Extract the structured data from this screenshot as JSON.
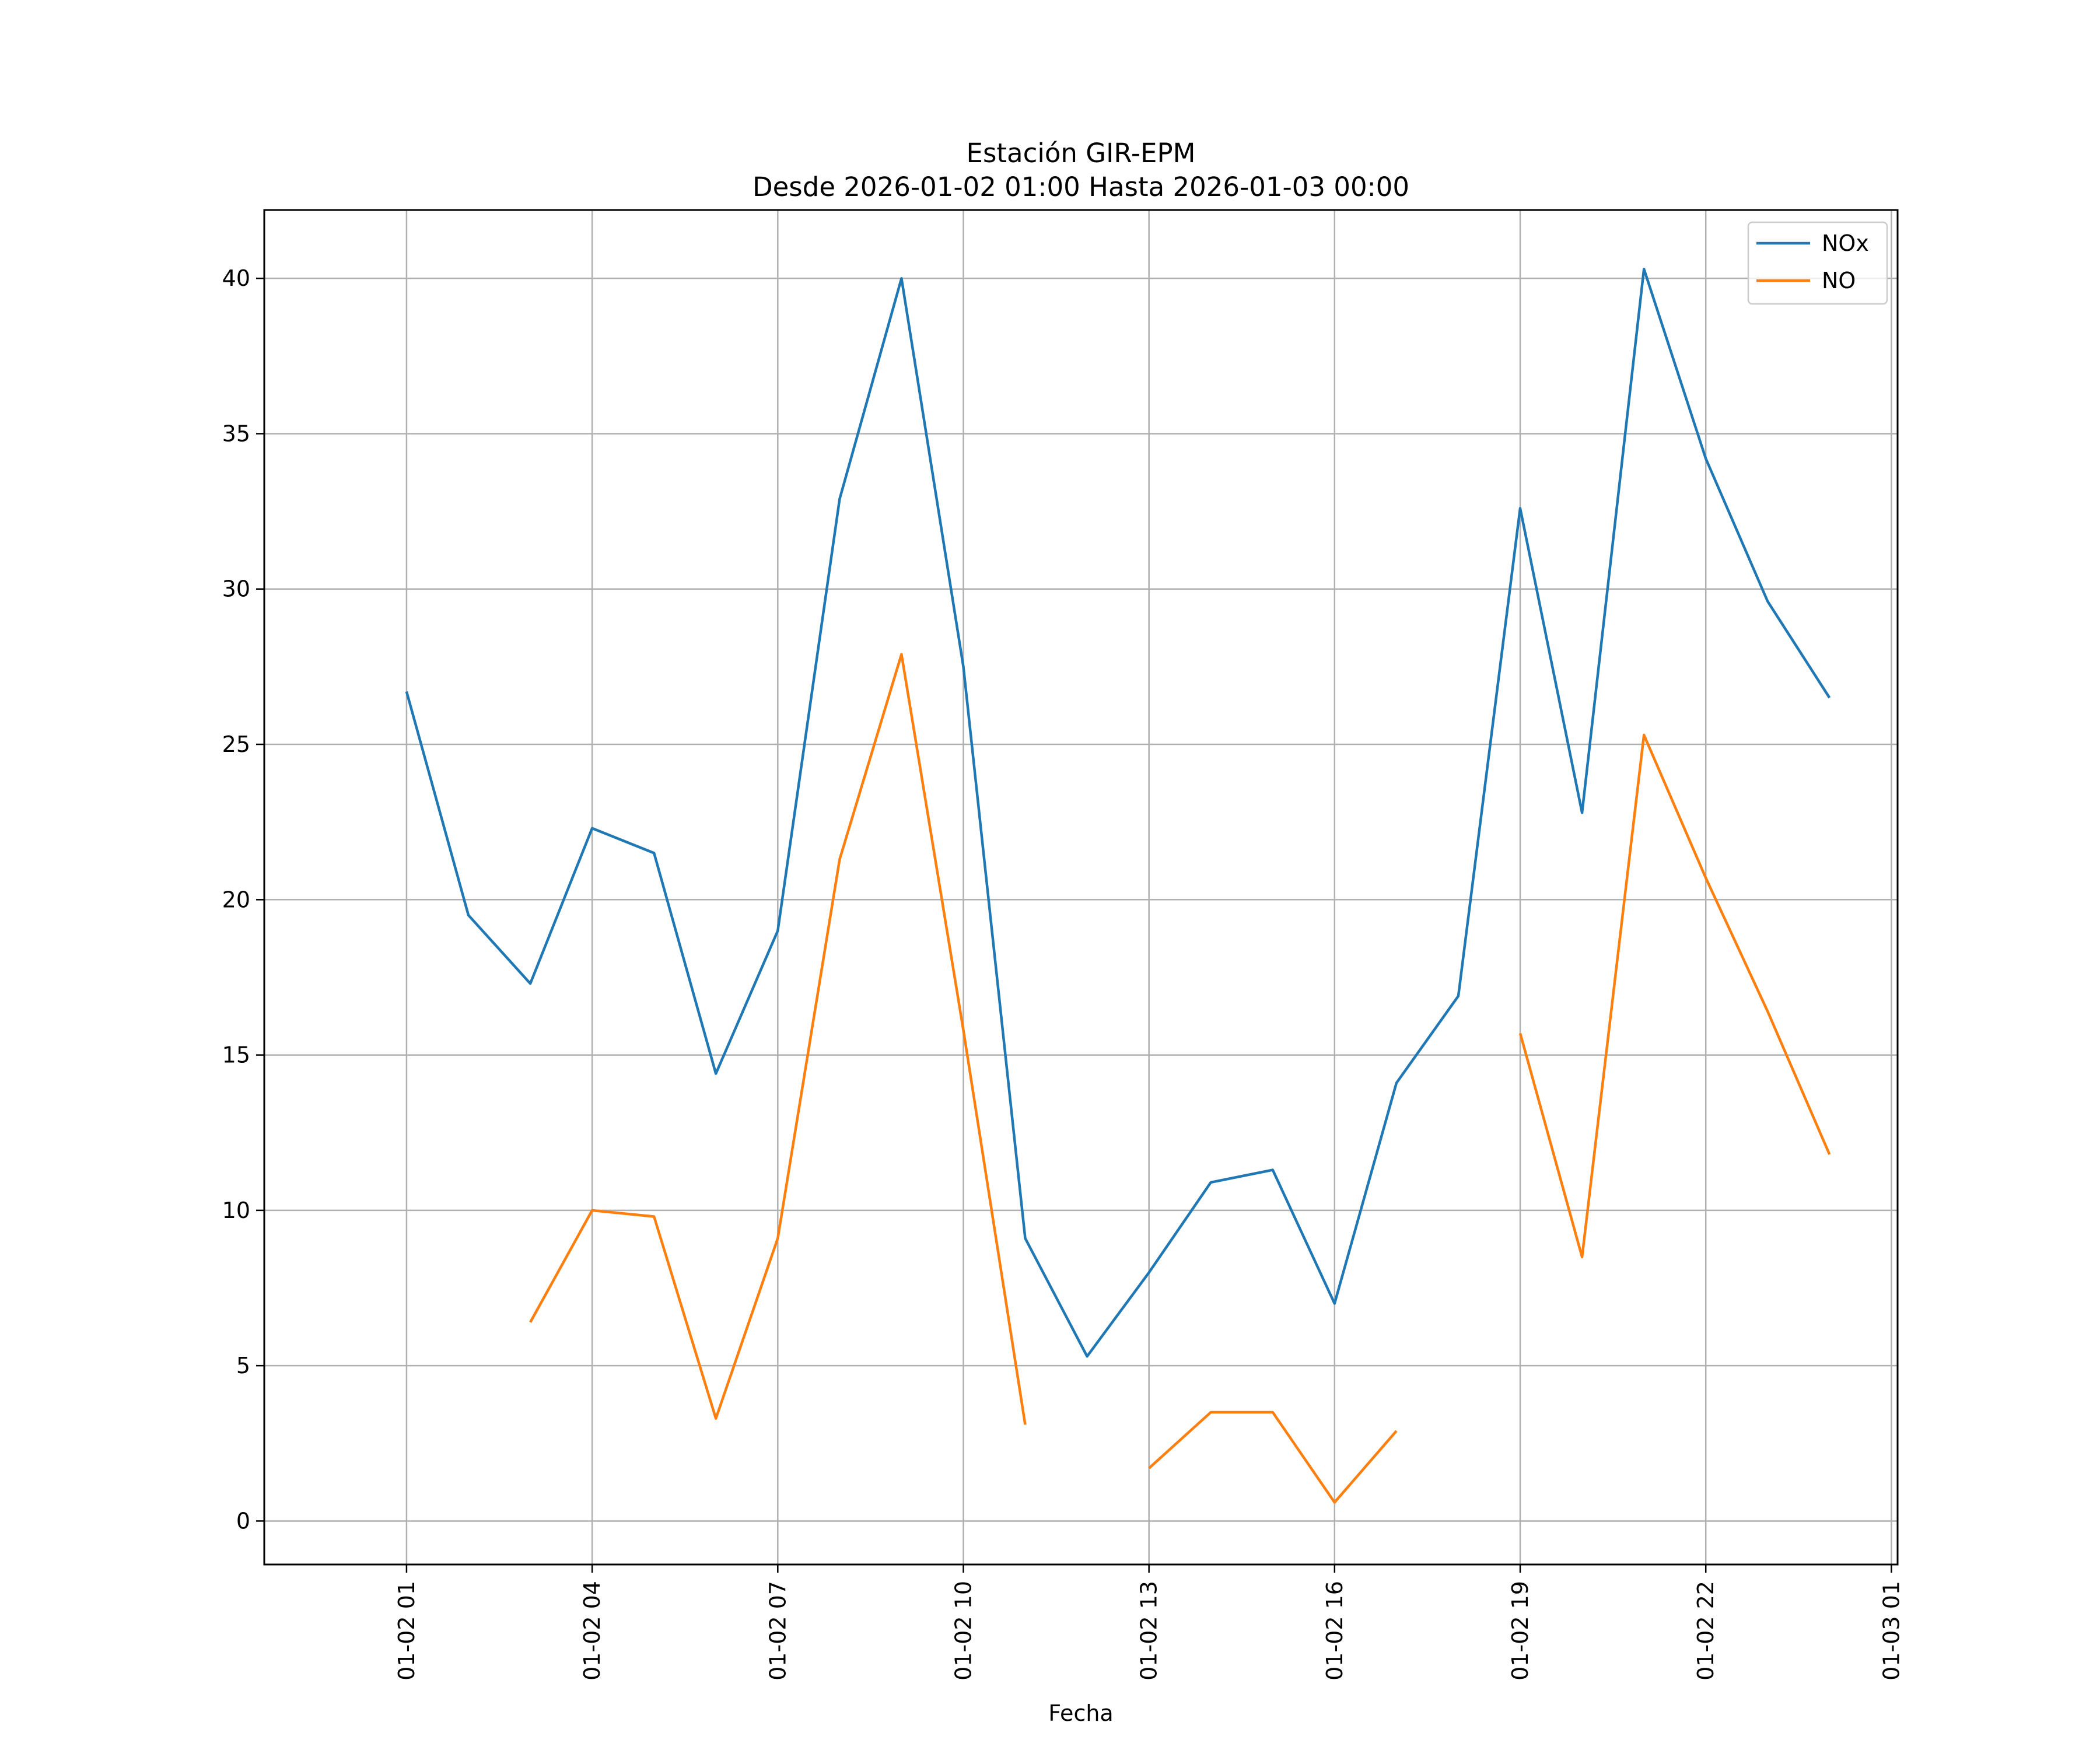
{
  "chart_data": {
    "type": "line",
    "title": "Estación GIR-EPM",
    "subtitle": "Desde 2026-01-02 01:00 Hasta 2026-01-03 00:00",
    "xlabel": "Fecha",
    "ylabel": "",
    "x": [
      "2026-01-02 01:00",
      "2026-01-02 02:00",
      "2026-01-02 03:00",
      "2026-01-02 04:00",
      "2026-01-02 05:00",
      "2026-01-02 06:00",
      "2026-01-02 07:00",
      "2026-01-02 08:00",
      "2026-01-02 09:00",
      "2026-01-02 10:00",
      "2026-01-02 11:00",
      "2026-01-02 12:00",
      "2026-01-02 13:00",
      "2026-01-02 14:00",
      "2026-01-02 15:00",
      "2026-01-02 16:00",
      "2026-01-02 17:00",
      "2026-01-02 18:00",
      "2026-01-02 19:00",
      "2026-01-02 20:00",
      "2026-01-02 21:00",
      "2026-01-02 22:00",
      "2026-01-02 23:00",
      "2026-01-03 00:00"
    ],
    "xlim": [
      "2026-01-01 22:42",
      "2026-01-03 01:06"
    ],
    "ylim": [
      -1.4,
      42.2
    ],
    "x_ticks": [
      "01-02 01",
      "01-02 04",
      "01-02 07",
      "01-02 10",
      "01-02 13",
      "01-02 16",
      "01-02 19",
      "01-02 22",
      "01-03 01"
    ],
    "y_ticks": [
      "0",
      "5",
      "10",
      "15",
      "20",
      "25",
      "30",
      "35",
      "40"
    ],
    "grid": true,
    "legend_position": "top-right",
    "series": [
      {
        "name": "NOx",
        "color": "#1f77b4",
        "values": [
          26.7,
          19.5,
          17.3,
          22.3,
          21.5,
          14.4,
          19.0,
          32.9,
          40.0,
          27.5,
          9.1,
          5.3,
          8.0,
          10.9,
          11.3,
          7.0,
          14.1,
          16.9,
          32.6,
          22.8,
          40.3,
          34.2,
          29.6,
          26.5
        ]
      },
      {
        "name": "NO",
        "color": "#ff7f0e",
        "values": [
          null,
          null,
          6.4,
          10.0,
          9.8,
          3.3,
          9.1,
          21.3,
          27.9,
          15.8,
          3.1,
          null,
          1.7,
          3.5,
          3.5,
          0.6,
          2.9,
          null,
          15.7,
          8.5,
          25.3,
          20.7,
          16.4,
          11.8
        ]
      }
    ]
  }
}
